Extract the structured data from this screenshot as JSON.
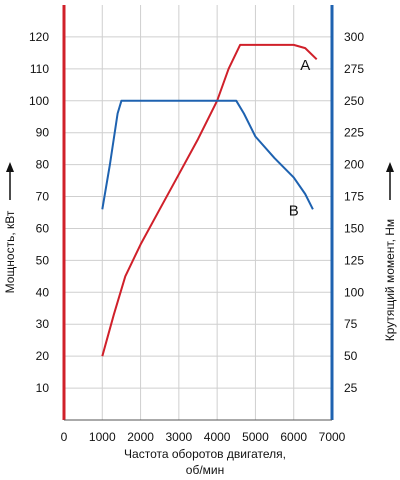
{
  "chart_data": {
    "type": "line",
    "xlabel_lines": [
      "Частота оборотов двигателя,",
      "об/мин"
    ],
    "ylabel_left": "Мощность, кВт",
    "ylabel_right": "Крутящий момент, Нм",
    "xlim": [
      0,
      7000
    ],
    "ylim_left": [
      0,
      130
    ],
    "ylim_right": [
      0,
      325
    ],
    "x_ticks": [
      0,
      1000,
      2000,
      3000,
      4000,
      5000,
      6000,
      7000
    ],
    "y_ticks_left": [
      10,
      20,
      30,
      40,
      50,
      60,
      70,
      80,
      90,
      100,
      110,
      120
    ],
    "y_ticks_right": [
      25,
      50,
      75,
      100,
      125,
      150,
      175,
      200,
      225,
      250,
      275,
      300
    ],
    "grid": true,
    "series": [
      {
        "name": "A",
        "axis": "left",
        "color": "#d0202a",
        "points": [
          [
            1000,
            20
          ],
          [
            1300,
            33
          ],
          [
            1600,
            45
          ],
          [
            2000,
            55
          ],
          [
            2500,
            66
          ],
          [
            3000,
            77
          ],
          [
            3500,
            88
          ],
          [
            4000,
            100
          ],
          [
            4300,
            110
          ],
          [
            4600,
            117.5
          ],
          [
            5000,
            117.5
          ],
          [
            5500,
            117.5
          ],
          [
            6000,
            117.5
          ],
          [
            6300,
            116.5
          ],
          [
            6600,
            113
          ]
        ]
      },
      {
        "name": "B",
        "axis": "right",
        "color": "#1e62b0",
        "points": [
          [
            1000,
            165
          ],
          [
            1200,
            200
          ],
          [
            1400,
            240
          ],
          [
            1500,
            250
          ],
          [
            2000,
            250
          ],
          [
            3000,
            250
          ],
          [
            4000,
            250
          ],
          [
            4500,
            250
          ],
          [
            4700,
            240
          ],
          [
            5000,
            222
          ],
          [
            5500,
            205
          ],
          [
            6000,
            190
          ],
          [
            6300,
            177
          ],
          [
            6500,
            165
          ]
        ]
      }
    ],
    "axis_colors": {
      "left": "#d0202a",
      "right": "#1e62b0"
    }
  }
}
